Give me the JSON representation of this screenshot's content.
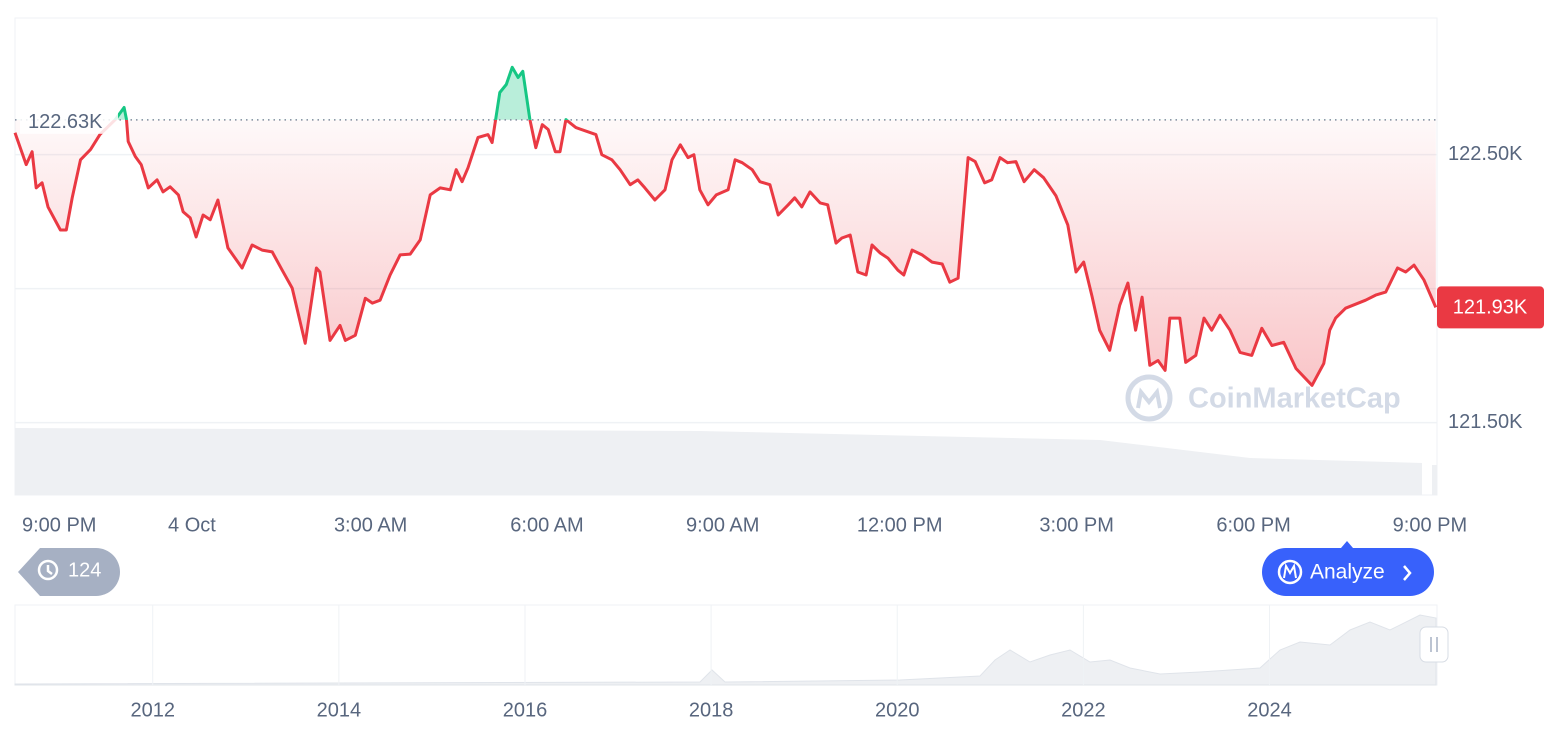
{
  "chart_data": {
    "type": "line",
    "x": [
      -0.75,
      -0.56,
      -0.46,
      -0.39,
      -0.29,
      -0.19,
      0.02,
      0.12,
      0.22,
      0.36,
      0.53,
      0.69,
      0.95,
      1.1,
      1.14,
      1.17,
      1.29,
      1.39,
      1.51,
      1.66,
      1.76,
      1.88,
      2.02,
      2.1,
      2.22,
      2.32,
      2.44,
      2.56,
      2.69,
      2.86,
      3.1,
      3.27,
      3.44,
      3.61,
      3.78,
      3.95,
      4.17,
      4.36,
      4.42,
      4.59,
      4.76,
      4.85,
      5.02,
      5.19,
      5.31,
      5.44,
      5.61,
      5.78,
      5.95,
      6.12,
      6.29,
      6.46,
      6.63,
      6.73,
      6.83,
      6.93,
      7.1,
      7.27,
      7.34,
      7.47,
      7.58,
      7.68,
      7.78,
      7.86,
      7.98,
      8.08,
      8.19,
      8.29,
      8.41,
      8.49,
      8.59,
      8.76,
      9.1,
      9.2,
      9.37,
      9.51,
      9.68,
      9.81,
      9.93,
      10.1,
      10.27,
      10.39,
      10.53,
      10.66,
      10.76,
      10.86,
      11.0,
      11.14,
      11.34,
      11.46,
      11.58,
      11.75,
      11.88,
      12.05,
      12.19,
      12.36,
      12.47,
      12.59,
      12.73,
      12.9,
      13.03,
      13.17,
      13.27,
      13.41,
      13.54,
      13.68,
      13.78,
      13.92,
      14.05,
      14.22,
      14.32,
      14.46,
      14.63,
      14.8,
      14.97,
      15.1,
      15.24,
      15.41,
      15.53,
      15.69,
      15.81,
      15.95,
      16.08,
      16.22,
      16.36,
      16.53,
      16.69,
      16.9,
      17.1,
      17.24,
      17.37,
      17.51,
      17.64,
      17.81,
      17.98,
      18.12,
      18.25,
      18.36,
      18.49,
      18.63,
      18.75,
      18.83,
      19.0,
      19.1,
      19.27,
      19.41,
      19.54,
      19.68,
      19.85,
      20.02,
      20.22,
      20.39,
      20.56,
      20.76,
      20.97,
      21.24,
      21.44,
      21.54,
      21.64,
      21.81,
      21.98,
      22.15,
      22.32,
      22.49,
      22.69,
      22.83,
      22.97,
      23.14,
      23.34
    ],
    "series": [
      {
        "color": "#ea3943",
        "values": [
          122582,
          122463,
          122511,
          122376,
          122395,
          122305,
          122219,
          122219,
          122339,
          122481,
          122519,
          122575,
          122631,
          122676,
          122631,
          122549,
          122493,
          122463,
          122376,
          122406,
          122361,
          122380,
          122350,
          122287,
          122264,
          122193,
          122275,
          122257,
          122331,
          122152,
          122077,
          122163,
          122144,
          122137,
          122069,
          122002,
          121796,
          122077,
          122062,
          121807,
          121863,
          121807,
          121826,
          121964,
          121946,
          121957,
          122051,
          122126,
          122129,
          122182,
          122350,
          122376,
          122369,
          122444,
          122399,
          122451,
          122564,
          122575,
          122545,
          122732,
          122762,
          122826,
          122788,
          122811,
          122631,
          122526,
          122612,
          122594,
          122511,
          122511,
          122631,
          122601,
          122575,
          122500,
          122481,
          122444,
          122388,
          122406,
          122376,
          122331,
          122369,
          122481,
          122537,
          122489,
          122500,
          122369,
          122313,
          122350,
          122369,
          122481,
          122470,
          122444,
          122399,
          122388,
          122275,
          122313,
          122339,
          122305,
          122361,
          122320,
          122313,
          122170,
          122189,
          122200,
          122062,
          122051,
          122163,
          122133,
          122114,
          122069,
          122051,
          122144,
          122126,
          122099,
          122092,
          122024,
          122039,
          122489,
          122474,
          122395,
          122406,
          122489,
          122470,
          122474,
          122399,
          122444,
          122414,
          122346,
          122238,
          122062,
          122099,
          121972,
          121845,
          121770,
          121938,
          122021,
          121845,
          121968,
          121714,
          121732,
          121695,
          121890,
          121890,
          121725,
          121751,
          121890,
          121845,
          121901,
          121845,
          121762,
          121751,
          121852,
          121788,
          121800,
          121702,
          121639,
          121721,
          121845,
          121890,
          121927,
          121942,
          121957,
          121976,
          121987,
          122077,
          122062,
          122088,
          122032,
          121930
        ]
      }
    ],
    "reference": {
      "value": 122630,
      "label": "122.63K",
      "color": "#16c784"
    },
    "current": {
      "value": 121930,
      "label": "121.93K",
      "color": "#ea3943"
    },
    "xlim": [
      -0.75,
      23.36
    ],
    "xticks": [
      {
        "value": 0,
        "label": "9:00 PM"
      },
      {
        "value": 2.25,
        "label": "4 Oct"
      },
      {
        "value": 5.28,
        "label": "3:00 AM"
      },
      {
        "value": 8.27,
        "label": "6:00 AM"
      },
      {
        "value": 11.25,
        "label": "9:00 AM"
      },
      {
        "value": 14.25,
        "label": "12:00 PM"
      },
      {
        "value": 17.25,
        "label": "3:00 PM"
      },
      {
        "value": 20.25,
        "label": "6:00 PM"
      },
      {
        "value": 23.24,
        "label": "9:00 PM"
      }
    ],
    "ylim": [
      121230,
      123010
    ],
    "yticks": [
      {
        "value": 121500,
        "label": "121.50K"
      },
      {
        "value": 122500,
        "label": "122.50K"
      }
    ],
    "grid_y": [
      121500,
      122000,
      122500
    ],
    "navigator": {
      "xlim": [
        2010.52,
        2025.8
      ],
      "xticks": [
        2012,
        2014,
        2016,
        2018,
        2020,
        2022,
        2024
      ]
    }
  },
  "ui": {
    "history_count": 124,
    "analyze": "Analyze",
    "watermark": "CoinMarketCap"
  }
}
